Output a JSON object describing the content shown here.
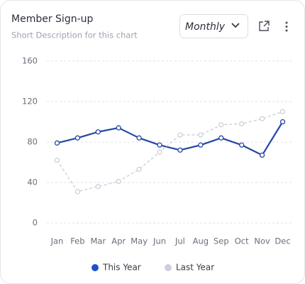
{
  "chart_data": {
    "type": "line",
    "title": "Member Sign-up",
    "subtitle": "Short Description for this chart",
    "categories": [
      "Jan",
      "Feb",
      "Mar",
      "Apr",
      "May",
      "Jun",
      "Jul",
      "Aug",
      "Sep",
      "Oct",
      "Nov",
      "Dec"
    ],
    "series": [
      {
        "name": "This Year",
        "color": "#2447a6",
        "dashed": false,
        "values": [
          79,
          84,
          90,
          94,
          84,
          77,
          72,
          77,
          84,
          77,
          67,
          100
        ]
      },
      {
        "name": "Last Year",
        "color": "#cdd0db",
        "dashed": true,
        "values": [
          62,
          31,
          36,
          41,
          53,
          70,
          87,
          87,
          97,
          98,
          103,
          110
        ]
      }
    ],
    "ylim": [
      0,
      160
    ],
    "yticks": [
      0,
      40,
      80,
      120,
      160
    ],
    "grid": true,
    "legend": "bottom"
  },
  "controls": {
    "period": "Monthly"
  }
}
